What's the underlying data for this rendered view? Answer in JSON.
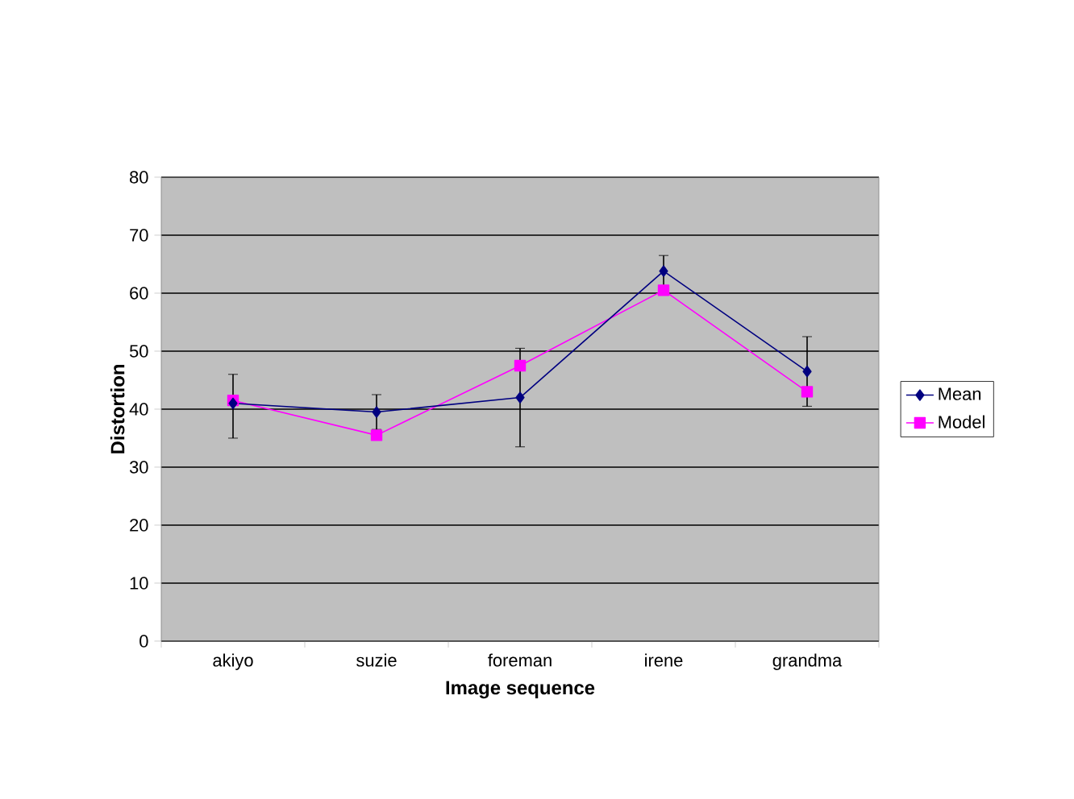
{
  "chart_data": {
    "type": "line",
    "xlabel": "Image sequence",
    "ylabel": "Distortion",
    "categories": [
      "akiyo",
      "suzie",
      "foreman",
      "irene",
      "grandma"
    ],
    "series": [
      {
        "name": "Mean",
        "color": "#000080",
        "marker": "diamond",
        "values": [
          41,
          39.5,
          42,
          63.8,
          46.5
        ],
        "errors": [
          [
            35,
            46
          ],
          [
            36.5,
            42.5
          ],
          [
            33.5,
            50.5
          ],
          [
            61,
            66.5
          ],
          [
            40.5,
            52.5
          ]
        ]
      },
      {
        "name": "Model",
        "color": "#ff00ff",
        "marker": "square",
        "values": [
          41.5,
          35.5,
          47.5,
          60.5,
          43
        ]
      }
    ],
    "ylim": [
      0,
      80
    ],
    "yticks": [
      0,
      10,
      20,
      30,
      40,
      50,
      60,
      70,
      80
    ],
    "grid": "y",
    "legend": "right"
  }
}
